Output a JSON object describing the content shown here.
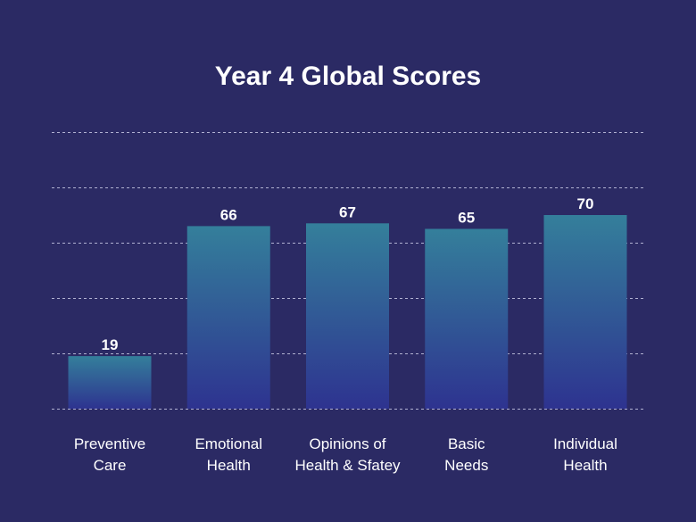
{
  "chart_data": {
    "type": "bar",
    "title": "Year 4 Global Scores",
    "categories": [
      [
        "Preventive",
        "Care"
      ],
      [
        "Emotional",
        "Health"
      ],
      [
        "Opinions of",
        "Health & Sfatey"
      ],
      [
        "Basic",
        "Needs"
      ],
      [
        "Individual",
        "Health"
      ]
    ],
    "values": [
      19,
      66,
      67,
      65,
      70
    ],
    "data_labels": [
      "19",
      "66",
      "67",
      "65",
      "70"
    ],
    "ylim": [
      0,
      100
    ],
    "gridlines": [
      0,
      20,
      40,
      60,
      80,
      100
    ],
    "grid": true,
    "xlabel": "",
    "ylabel": "",
    "colors": {
      "background": "#2b2a64",
      "bar_top": "#347f9b",
      "bar_bottom": "#2e3390",
      "gridline": "#c9c9e4",
      "text": "#ffffff"
    }
  }
}
